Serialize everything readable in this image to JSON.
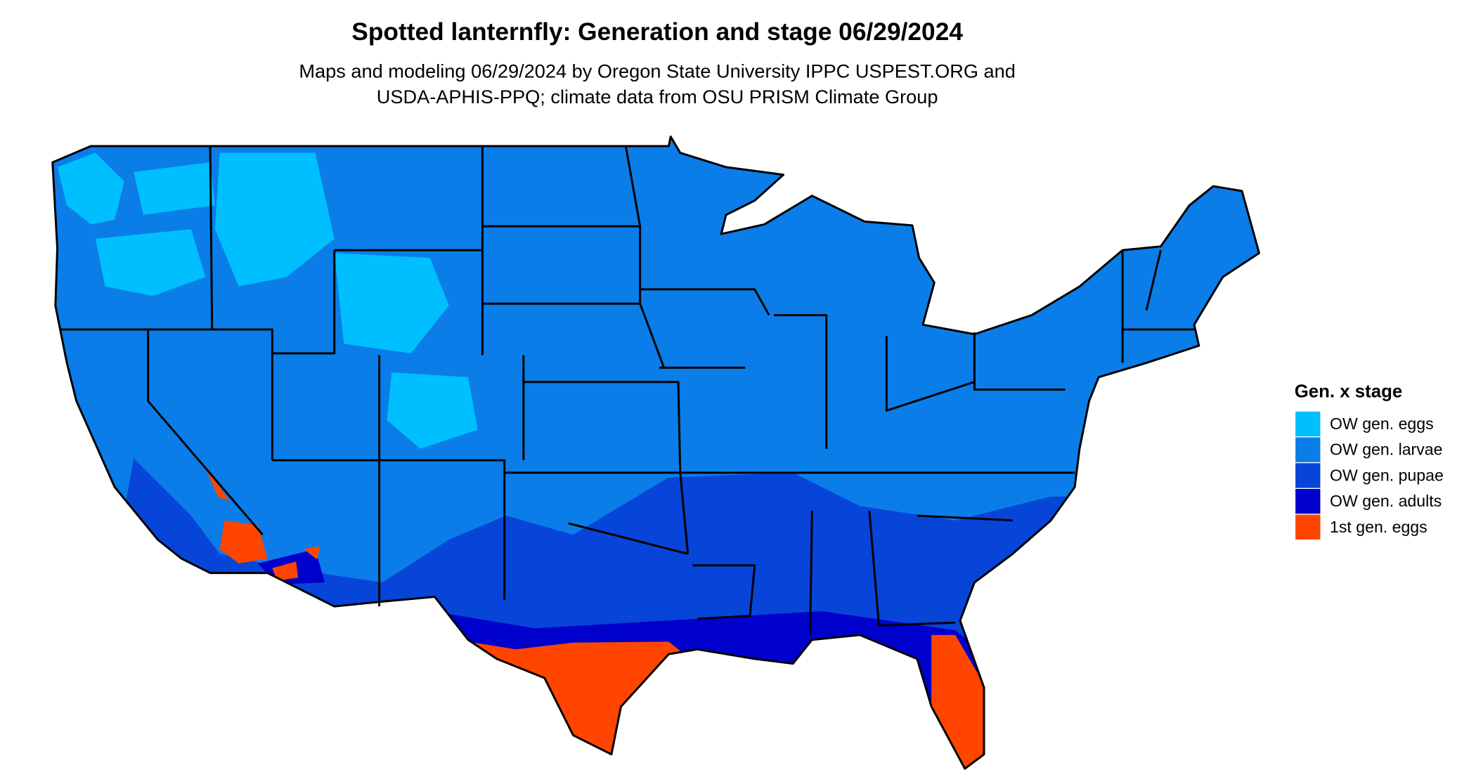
{
  "title": "Spotted lanternfly: Generation and stage 06/29/2024",
  "subtitle": [
    "Maps and modeling 06/29/2024 by Oregon State University IPPC USPEST.ORG and",
    "USDA-APHIS-PPQ; climate data from OSU PRISM Climate Group"
  ],
  "legend": {
    "title": "Gen. x stage",
    "items": [
      {
        "label": "OW gen. eggs",
        "color": "#00bfff"
      },
      {
        "label": "OW gen. larvae",
        "color": "#0b7de8"
      },
      {
        "label": "OW gen. pupae",
        "color": "#0645d8"
      },
      {
        "label": "OW gen. adults",
        "color": "#0000cc"
      },
      {
        "label": "1st gen. eggs",
        "color": "#ff4500"
      }
    ]
  }
}
